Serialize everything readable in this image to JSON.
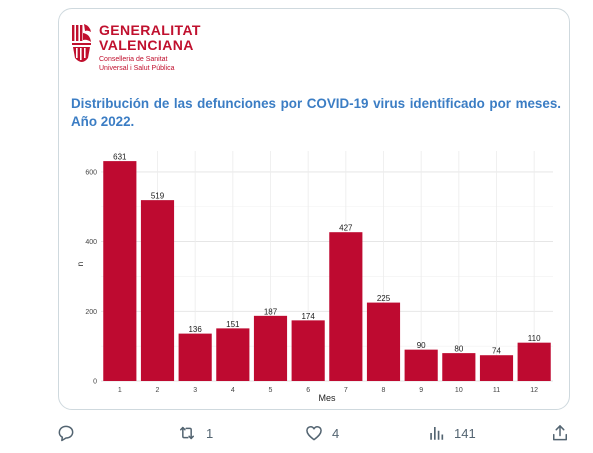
{
  "tweet": {
    "logo": {
      "name_line1": "GENERALITAT",
      "name_line2": "VALENCIANA",
      "sub_line1": "Conselleria de Sanitat",
      "sub_line2": "Universal i Salut Pública"
    },
    "actions": {
      "reply_count": "",
      "retweet_count": "1",
      "like_count": "4",
      "views_count": "141"
    },
    "icons": [
      "reply-icon",
      "retweet-icon",
      "like-icon",
      "views-icon",
      "share-icon"
    ]
  },
  "chart_data": {
    "type": "bar",
    "title": "Distribución de las defunciones por COVID-19 virus identificado por meses. Año 2022.",
    "xlabel": "Mes",
    "ylabel": "n",
    "categories": [
      "1",
      "2",
      "3",
      "4",
      "5",
      "6",
      "7",
      "8",
      "9",
      "10",
      "11",
      "12"
    ],
    "values": [
      631,
      519,
      136,
      151,
      187,
      174,
      427,
      225,
      90,
      80,
      74,
      110
    ],
    "yticks": [
      0,
      200,
      400,
      600
    ],
    "ylim": [
      0,
      660
    ],
    "bar_color": "#be0a30",
    "grid": true
  }
}
